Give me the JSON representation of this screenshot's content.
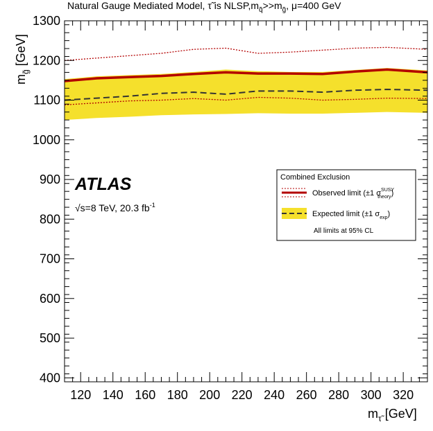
{
  "chart_data": {
    "type": "line",
    "title": {
      "main": "Natural Gauge Mediated Model, ",
      "tau": "τ̃",
      "is_nlsp": " is NLSP,m",
      "sub_q": "q̃",
      "gg": ">>m",
      "sub_g": "g̃",
      "mu": ",  μ=400 GeV"
    },
    "xlabel": {
      "main": "m",
      "sub": "τ̃",
      "unit": " [GeV]"
    },
    "ylabel": {
      "main": "m",
      "sub": "g̃",
      "unit": " [GeV]"
    },
    "xlim": [
      110,
      335
    ],
    "ylim": [
      390,
      1300
    ],
    "xticks": [
      120,
      140,
      160,
      180,
      200,
      220,
      240,
      260,
      280,
      300,
      320
    ],
    "yticks": [
      400,
      500,
      600,
      700,
      800,
      900,
      1000,
      1100,
      1200,
      1300
    ],
    "x": [
      110,
      130,
      150,
      170,
      190,
      210,
      230,
      250,
      270,
      290,
      310,
      335
    ],
    "series": [
      {
        "name": "Observed limit",
        "role": "observed",
        "color": "#b30000",
        "values": [
          1148,
          1155,
          1158,
          1161,
          1166,
          1170,
          1167,
          1167,
          1166,
          1172,
          1177,
          1170
        ]
      },
      {
        "role": "observed_up",
        "color": "#b30000",
        "values": [
          1200,
          1206,
          1212,
          1218,
          1228,
          1231,
          1218,
          1221,
          1226,
          1231,
          1233,
          1228
        ]
      },
      {
        "role": "observed_down",
        "color": "#b30000",
        "values": [
          1088,
          1093,
          1098,
          1100,
          1104,
          1100,
          1107,
          1105,
          1100,
          1102,
          1105,
          1104
        ]
      },
      {
        "name": "Expected limit",
        "role": "expected",
        "color": "#333333",
        "values": [
          1100,
          1105,
          1110,
          1117,
          1120,
          1115,
          1123,
          1123,
          1120,
          1125,
          1127,
          1125
        ]
      },
      {
        "role": "expected_band_upper",
        "color": "#f5e02c",
        "values": [
          1153,
          1160,
          1163,
          1166,
          1171,
          1177,
          1173,
          1171,
          1171,
          1176,
          1181,
          1175
        ]
      },
      {
        "role": "expected_band_lower",
        "color": "#f5e02c",
        "values": [
          1050,
          1055,
          1058,
          1062,
          1064,
          1065,
          1067,
          1066,
          1066,
          1068,
          1070,
          1068
        ]
      }
    ],
    "legend": {
      "header": "Combined Exclusion",
      "observed_label": "Observed limit (±1 σ",
      "observed_sup": "SUSY",
      "observed_sub": "theory",
      "expected_label": "Expected limit (±1 σ",
      "expected_sub": "exp",
      "close_paren": ")",
      "footer": "All limits at 95% CL",
      "placement": "right"
    },
    "annotations": {
      "experiment": "ATLAS",
      "energy_prefix": "√s=8 TeV, 20.3 fb",
      "energy_sup": "-1"
    }
  }
}
